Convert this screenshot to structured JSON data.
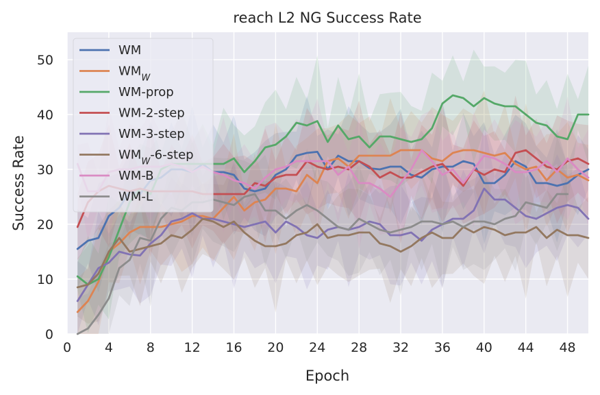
{
  "chart_data": {
    "type": "line",
    "title": "reach L2 NG Success Rate",
    "xlabel": "Epoch",
    "ylabel": "Success Rate",
    "xlim": [
      0,
      50
    ],
    "ylim": [
      0,
      55
    ],
    "xticks": [
      0,
      4,
      8,
      12,
      16,
      20,
      24,
      28,
      32,
      36,
      40,
      44,
      48
    ],
    "yticks": [
      0,
      10,
      20,
      30,
      40,
      50
    ],
    "grid": true,
    "background": "#eaeaf2",
    "legend": {
      "position": "top-left"
    },
    "series": [
      {
        "name": "WM",
        "base": "WM",
        "sub": "",
        "suffix": "",
        "color": "#4c72b0",
        "x": [
          1,
          2,
          3,
          4,
          5,
          6,
          7,
          8,
          9,
          10,
          11,
          12,
          13,
          14,
          15,
          16,
          17,
          18,
          19,
          20,
          21,
          22,
          23,
          24,
          25,
          26,
          27,
          28,
          29,
          30,
          31,
          32,
          33,
          34,
          35,
          36,
          37,
          38,
          39,
          40,
          41,
          42,
          43,
          44,
          45,
          46,
          47,
          48,
          49,
          50
        ],
        "y": [
          15.5,
          17,
          17.5,
          21.5,
          23,
          26,
          25.5,
          28,
          28.5,
          30,
          30,
          29.5,
          31,
          29.5,
          29.5,
          29,
          26.5,
          26,
          26.5,
          29,
          30,
          32.5,
          33,
          33.2,
          30,
          32.5,
          31.5,
          31.5,
          30.2,
          30,
          30.5,
          30.5,
          29,
          28.5,
          30,
          30.5,
          30.5,
          31.5,
          31,
          27.5,
          27.5,
          29,
          31.5,
          30.5,
          27.5,
          27.5,
          27,
          27.5,
          29,
          30
        ]
      },
      {
        "name": "WM_w",
        "base": "WM",
        "sub": "W",
        "suffix": "",
        "color": "#dd8452",
        "x": [
          1,
          2,
          3,
          4,
          5,
          6,
          7,
          8,
          9,
          10,
          11,
          12,
          13,
          14,
          15,
          16,
          17,
          18,
          19,
          20,
          21,
          22,
          23,
          24,
          25,
          26,
          27,
          28,
          29,
          30,
          31,
          32,
          33,
          34,
          35,
          36,
          37,
          38,
          39,
          40,
          41,
          42,
          43,
          44,
          45,
          46,
          47,
          48,
          49,
          50
        ],
        "y": [
          4,
          6,
          9.5,
          15,
          16.5,
          18.5,
          19.5,
          19.5,
          19.5,
          20,
          20.5,
          21.5,
          21.5,
          21,
          23,
          25,
          22.5,
          24,
          24.5,
          26.5,
          26.5,
          26,
          29,
          27.5,
          31.5,
          32,
          30.5,
          32.5,
          32.5,
          32.5,
          32.5,
          33.5,
          33.5,
          33.5,
          32,
          31.5,
          33,
          33.5,
          33.5,
          33,
          32.5,
          33,
          31,
          30,
          30.5,
          28,
          30,
          28.5,
          29,
          28
        ]
      },
      {
        "name": "WM-prop",
        "base": "WM-prop",
        "sub": "",
        "suffix": "",
        "color": "#55a868",
        "x": [
          1,
          2,
          3,
          4,
          5,
          6,
          7,
          8,
          9,
          10,
          11,
          12,
          13,
          14,
          15,
          16,
          17,
          18,
          19,
          20,
          21,
          22,
          23,
          24,
          25,
          26,
          27,
          28,
          29,
          30,
          31,
          32,
          33,
          34,
          35,
          36,
          37,
          38,
          39,
          40,
          41,
          42,
          43,
          44,
          45,
          46,
          47,
          48,
          49,
          50
        ],
        "y": [
          10.5,
          9,
          10,
          14,
          19,
          24,
          26.5,
          25.5,
          30,
          31,
          31,
          31,
          31,
          31,
          31,
          32,
          29.5,
          31.5,
          34,
          34.5,
          36,
          38.5,
          38,
          38.8,
          35,
          38,
          35.5,
          36,
          34,
          36,
          36,
          35.5,
          35,
          35.5,
          37.5,
          42,
          43.5,
          43,
          41.5,
          43,
          42,
          41.5,
          41.5,
          40,
          38.5,
          38,
          36,
          35.5,
          40,
          40
        ]
      },
      {
        "name": "WM-2-step",
        "base": "WM-2-step",
        "sub": "",
        "suffix": "",
        "color": "#c44e52",
        "x": [
          1,
          2,
          3,
          4,
          5,
          6,
          7,
          8,
          9,
          10,
          11,
          12,
          13,
          14,
          15,
          16,
          17,
          18,
          19,
          20,
          21,
          22,
          23,
          24,
          25,
          26,
          27,
          28,
          29,
          30,
          31,
          32,
          33,
          34,
          35,
          36,
          37,
          38,
          39,
          40,
          41,
          42,
          43,
          44,
          45,
          46,
          47,
          48,
          49,
          50
        ],
        "y": [
          19.5,
          24,
          26,
          27,
          26.5,
          26,
          26.5,
          26,
          26,
          26,
          26,
          26,
          25.5,
          25.5,
          25.5,
          25.5,
          25.5,
          27.5,
          27,
          28.5,
          29,
          29,
          31.5,
          30.5,
          30,
          30.5,
          30,
          31.5,
          30.5,
          28.5,
          29.5,
          28.5,
          28.5,
          29.5,
          30.5,
          31,
          29,
          27,
          30,
          29,
          30,
          29.5,
          33,
          33.5,
          32,
          30.5,
          30,
          31.5,
          32,
          31
        ]
      },
      {
        "name": "WM-3-step",
        "base": "WM-3-step",
        "sub": "",
        "suffix": "",
        "color": "#8172b3",
        "x": [
          1,
          2,
          3,
          4,
          5,
          6,
          7,
          8,
          9,
          10,
          11,
          12,
          13,
          14,
          15,
          16,
          17,
          18,
          19,
          20,
          21,
          22,
          23,
          24,
          25,
          26,
          27,
          28,
          29,
          30,
          31,
          32,
          33,
          34,
          35,
          36,
          37,
          38,
          39,
          40,
          41,
          42,
          43,
          44,
          45,
          46,
          47,
          48,
          49,
          50
        ],
        "y": [
          6,
          9,
          12,
          13,
          15,
          14.5,
          14.3,
          16.5,
          18,
          20.5,
          21,
          22,
          21,
          21,
          20.5,
          20,
          19.5,
          20,
          20.5,
          18.5,
          20.5,
          19.5,
          18,
          17.5,
          19,
          19.5,
          19,
          19.5,
          20.5,
          20,
          18,
          18,
          18.5,
          17,
          19,
          20,
          21,
          21,
          22.5,
          26.5,
          24.5,
          24.5,
          23,
          21.5,
          21,
          22,
          23,
          23.5,
          23,
          21
        ]
      },
      {
        "name": "WM_w-6-step",
        "base": "WM",
        "sub": "W",
        "suffix": "-6-step",
        "color": "#937860",
        "x": [
          1,
          2,
          3,
          4,
          5,
          6,
          7,
          8,
          9,
          10,
          11,
          12,
          13,
          14,
          15,
          16,
          17,
          18,
          19,
          20,
          21,
          22,
          23,
          24,
          25,
          26,
          27,
          28,
          29,
          30,
          31,
          32,
          33,
          34,
          35,
          36,
          37,
          38,
          39,
          40,
          41,
          42,
          43,
          44,
          45,
          46,
          47,
          48,
          49,
          50
        ],
        "y": [
          8.5,
          9,
          11,
          15,
          17.5,
          15,
          15.5,
          16,
          16.5,
          18,
          17.5,
          19,
          21,
          20.5,
          19.5,
          20.5,
          18.5,
          17,
          16,
          16,
          16.5,
          18,
          18.5,
          20,
          17.5,
          18,
          18,
          18.5,
          18.5,
          16.5,
          16,
          15,
          16,
          17.5,
          18.5,
          17.5,
          17.5,
          19.5,
          18.5,
          19.5,
          19,
          18,
          18.5,
          18.5,
          19.5,
          17.5,
          19,
          18,
          18,
          17.5
        ]
      },
      {
        "name": "WM-B",
        "base": "WM-B",
        "sub": "",
        "suffix": "",
        "color": "#da8bc3",
        "x": [
          1,
          2,
          3,
          4,
          5,
          6,
          7,
          8,
          9,
          10,
          11,
          12,
          13,
          14,
          15,
          16,
          17,
          18,
          19,
          20,
          21,
          22,
          23,
          24,
          25,
          26,
          27,
          28,
          29,
          30,
          31,
          32,
          33,
          34,
          35,
          36,
          37,
          38,
          39,
          40,
          41,
          42,
          43,
          44,
          45,
          46,
          47,
          48,
          49,
          50
        ],
        "y": [
          31,
          26,
          26,
          29.5,
          30,
          30,
          30.5,
          30.5,
          30.5,
          31,
          30.5,
          29.5,
          30.5,
          29.5,
          29,
          28,
          27.5,
          26.5,
          28.5,
          30,
          30.5,
          31.5,
          31.5,
          31.5,
          31.5,
          29,
          30.5,
          27.5,
          27.5,
          26.5,
          25,
          27.5,
          30,
          33.5,
          31.5,
          29,
          30,
          27.5,
          30,
          32.5,
          32,
          31,
          29.5,
          29.5,
          30,
          31.5,
          29.5,
          32,
          30,
          28.5
        ]
      },
      {
        "name": "WM-L",
        "base": "WM-L",
        "sub": "",
        "suffix": "",
        "color": "#8c8c8c",
        "x": [
          1,
          2,
          3,
          4,
          5,
          6,
          7,
          8,
          9,
          10,
          11,
          12,
          13,
          14,
          15,
          16,
          17,
          18,
          19,
          20,
          21,
          22,
          23,
          24,
          25,
          26,
          27,
          28,
          29,
          30,
          31,
          32,
          33,
          34,
          35,
          36,
          37,
          38,
          39,
          40,
          41,
          42,
          43,
          44,
          45,
          46,
          47,
          48
        ],
        "y": [
          0,
          1,
          3.5,
          6.5,
          12,
          13.5,
          17.5,
          17,
          21,
          23,
          22.5,
          24,
          24,
          24.5,
          24,
          23.5,
          25,
          25.5,
          22.5,
          22.5,
          21,
          22.5,
          23.5,
          22.5,
          21,
          19.5,
          19,
          21,
          20,
          19,
          18.5,
          19,
          19.5,
          20.5,
          20.5,
          20,
          20.5,
          19.5,
          20.5,
          20.5,
          20,
          21,
          21.5,
          24,
          23.5,
          23,
          25.5,
          25.5
        ]
      }
    ]
  }
}
